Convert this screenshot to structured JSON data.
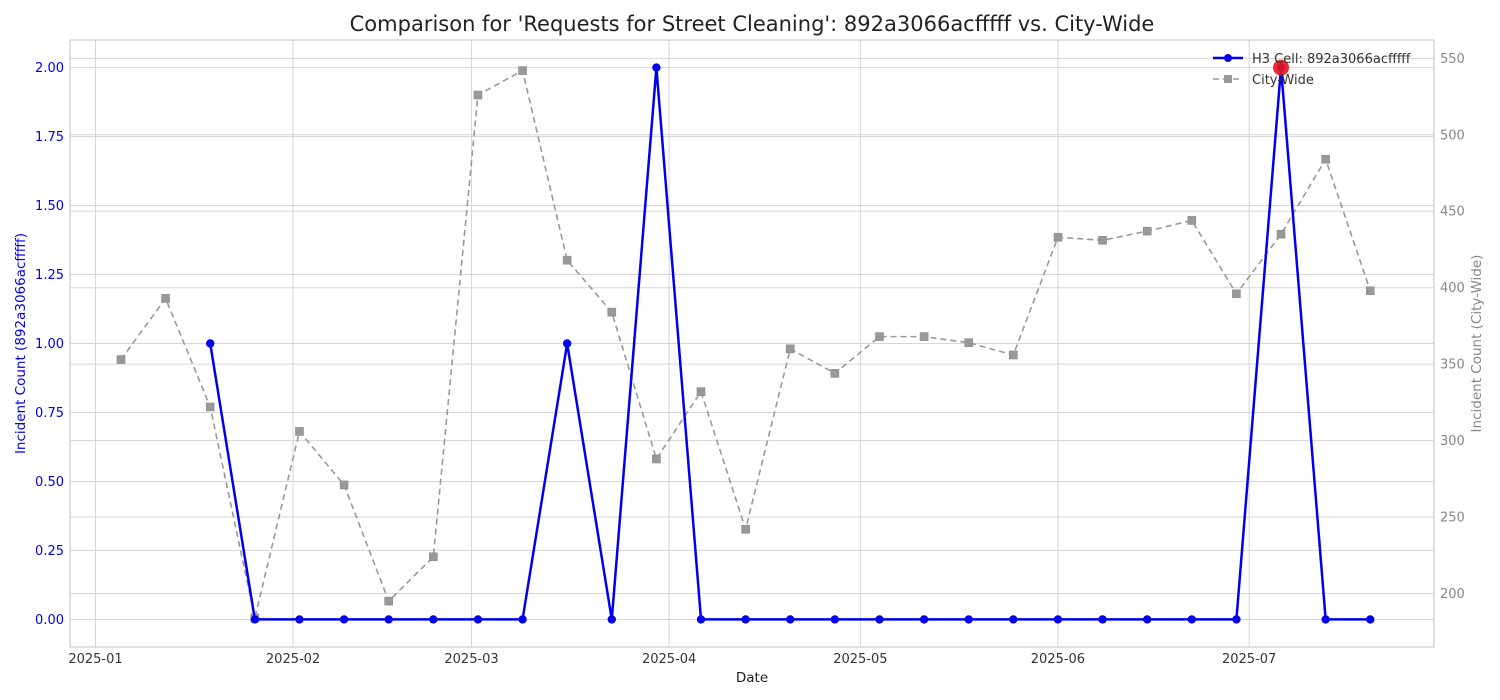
{
  "chart_data": {
    "type": "line",
    "title": "Comparison for 'Requests for Street Cleaning': 892a3066acfffff vs. City-Wide",
    "xlabel": "Date",
    "ylabel_left": "Incident Count (892a3066acfffff)",
    "ylabel_right": "Incident Count (City-Wide)",
    "x_ticks": [
      "2025-01",
      "2025-02",
      "2025-03",
      "2025-04",
      "2025-05",
      "2025-06",
      "2025-07"
    ],
    "x_range": [
      "2024-12-28",
      "2025-07-30"
    ],
    "y_left_range": [
      -0.1,
      2.1
    ],
    "y_left_ticks": [
      "0.00",
      "0.25",
      "0.50",
      "0.75",
      "1.00",
      "1.25",
      "1.50",
      "1.75",
      "2.00"
    ],
    "y_right_range": [
      165,
      562
    ],
    "y_right_ticks": [
      "200",
      "250",
      "300",
      "350",
      "400",
      "450",
      "500",
      "550"
    ],
    "grid": true,
    "legend_position": "top-right",
    "series": [
      {
        "name": "H3 Cell: 892a3066acfffff",
        "axis": "left",
        "color": "#0000ee",
        "style": "solid",
        "marker": "circle",
        "x": [
          "2025-01-19",
          "2025-01-26",
          "2025-02-02",
          "2025-02-09",
          "2025-02-16",
          "2025-02-23",
          "2025-03-02",
          "2025-03-09",
          "2025-03-16",
          "2025-03-23",
          "2025-03-30",
          "2025-04-06",
          "2025-04-13",
          "2025-04-20",
          "2025-04-27",
          "2025-05-04",
          "2025-05-11",
          "2025-05-18",
          "2025-05-25",
          "2025-06-01",
          "2025-06-08",
          "2025-06-15",
          "2025-06-22",
          "2025-06-29",
          "2025-07-06",
          "2025-07-13",
          "2025-07-20"
        ],
        "values": [
          1,
          0,
          0,
          0,
          0,
          0,
          0,
          0,
          1,
          0,
          2,
          0,
          0,
          0,
          0,
          0,
          0,
          0,
          0,
          0,
          0,
          0,
          0,
          0,
          2,
          0,
          0
        ]
      },
      {
        "name": "City-Wide",
        "axis": "right",
        "color": "#999999",
        "style": "dashed",
        "marker": "square",
        "x": [
          "2025-01-05",
          "2025-01-12",
          "2025-01-19",
          "2025-01-26",
          "2025-02-02",
          "2025-02-09",
          "2025-02-16",
          "2025-02-23",
          "2025-03-02",
          "2025-03-09",
          "2025-03-16",
          "2025-03-23",
          "2025-03-30",
          "2025-04-06",
          "2025-04-13",
          "2025-04-20",
          "2025-04-27",
          "2025-05-04",
          "2025-05-11",
          "2025-05-18",
          "2025-05-25",
          "2025-06-01",
          "2025-06-08",
          "2025-06-15",
          "2025-06-22",
          "2025-06-29",
          "2025-07-06",
          "2025-07-13",
          "2025-07-20"
        ],
        "values": [
          353,
          393,
          322,
          184,
          306,
          271,
          195,
          224,
          526,
          542,
          418,
          384,
          288,
          332,
          242,
          360,
          344,
          368,
          368,
          364,
          356,
          433,
          431,
          437,
          444,
          396,
          435,
          484,
          398
        ]
      }
    ],
    "highlight": {
      "series": 0,
      "x": "2025-07-06",
      "value": 2,
      "color": "#e8141e"
    }
  }
}
